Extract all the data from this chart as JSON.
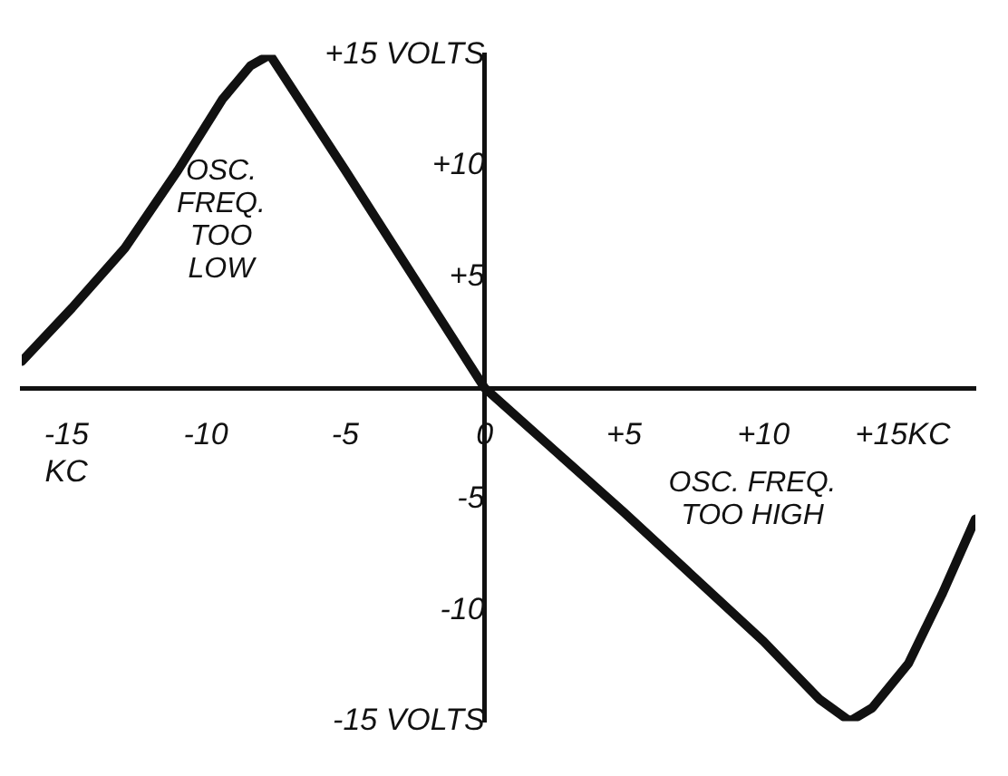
{
  "chart_data": {
    "type": "line",
    "x": [
      -16.6,
      -14.8,
      -12.9,
      -11,
      -9.4,
      -8.4,
      -7.7,
      -5,
      -2.5,
      0,
      2.5,
      5,
      7.5,
      10,
      12,
      13.1,
      13.9,
      15.2,
      16.4,
      17.6
    ],
    "values": [
      1.2,
      3.6,
      6.3,
      9.8,
      13,
      14.5,
      15,
      9.8,
      4.9,
      0,
      -2.8,
      -5.6,
      -8.5,
      -11.4,
      -14,
      -15,
      -14.4,
      -12.4,
      -9.3,
      -5.9
    ],
    "color": "#111111",
    "marker": "none",
    "line_style": "solid",
    "grid": false,
    "legend": false,
    "xlim": [
      -16.6,
      17.6
    ],
    "ylim": [
      -15,
      15
    ],
    "xticks": [
      {
        "value": -15,
        "label": "-15 KC"
      },
      -10,
      -5,
      0,
      {
        "value": 5,
        "label": "+5"
      },
      {
        "value": 10,
        "label": "+10"
      },
      {
        "value": 15,
        "label": "+15KC"
      }
    ],
    "yticks": [
      {
        "value": -15,
        "label": "-15 VOLTS"
      },
      -10,
      -5,
      {
        "value": 5,
        "label": "+5"
      },
      {
        "value": 10,
        "label": "+10"
      },
      {
        "value": 15,
        "label": "+15 VOLTS"
      }
    ],
    "annotations": [
      "OSC. FREQ. TOO LOW",
      "OSC. FREQ. TOO HIGH"
    ]
  }
}
